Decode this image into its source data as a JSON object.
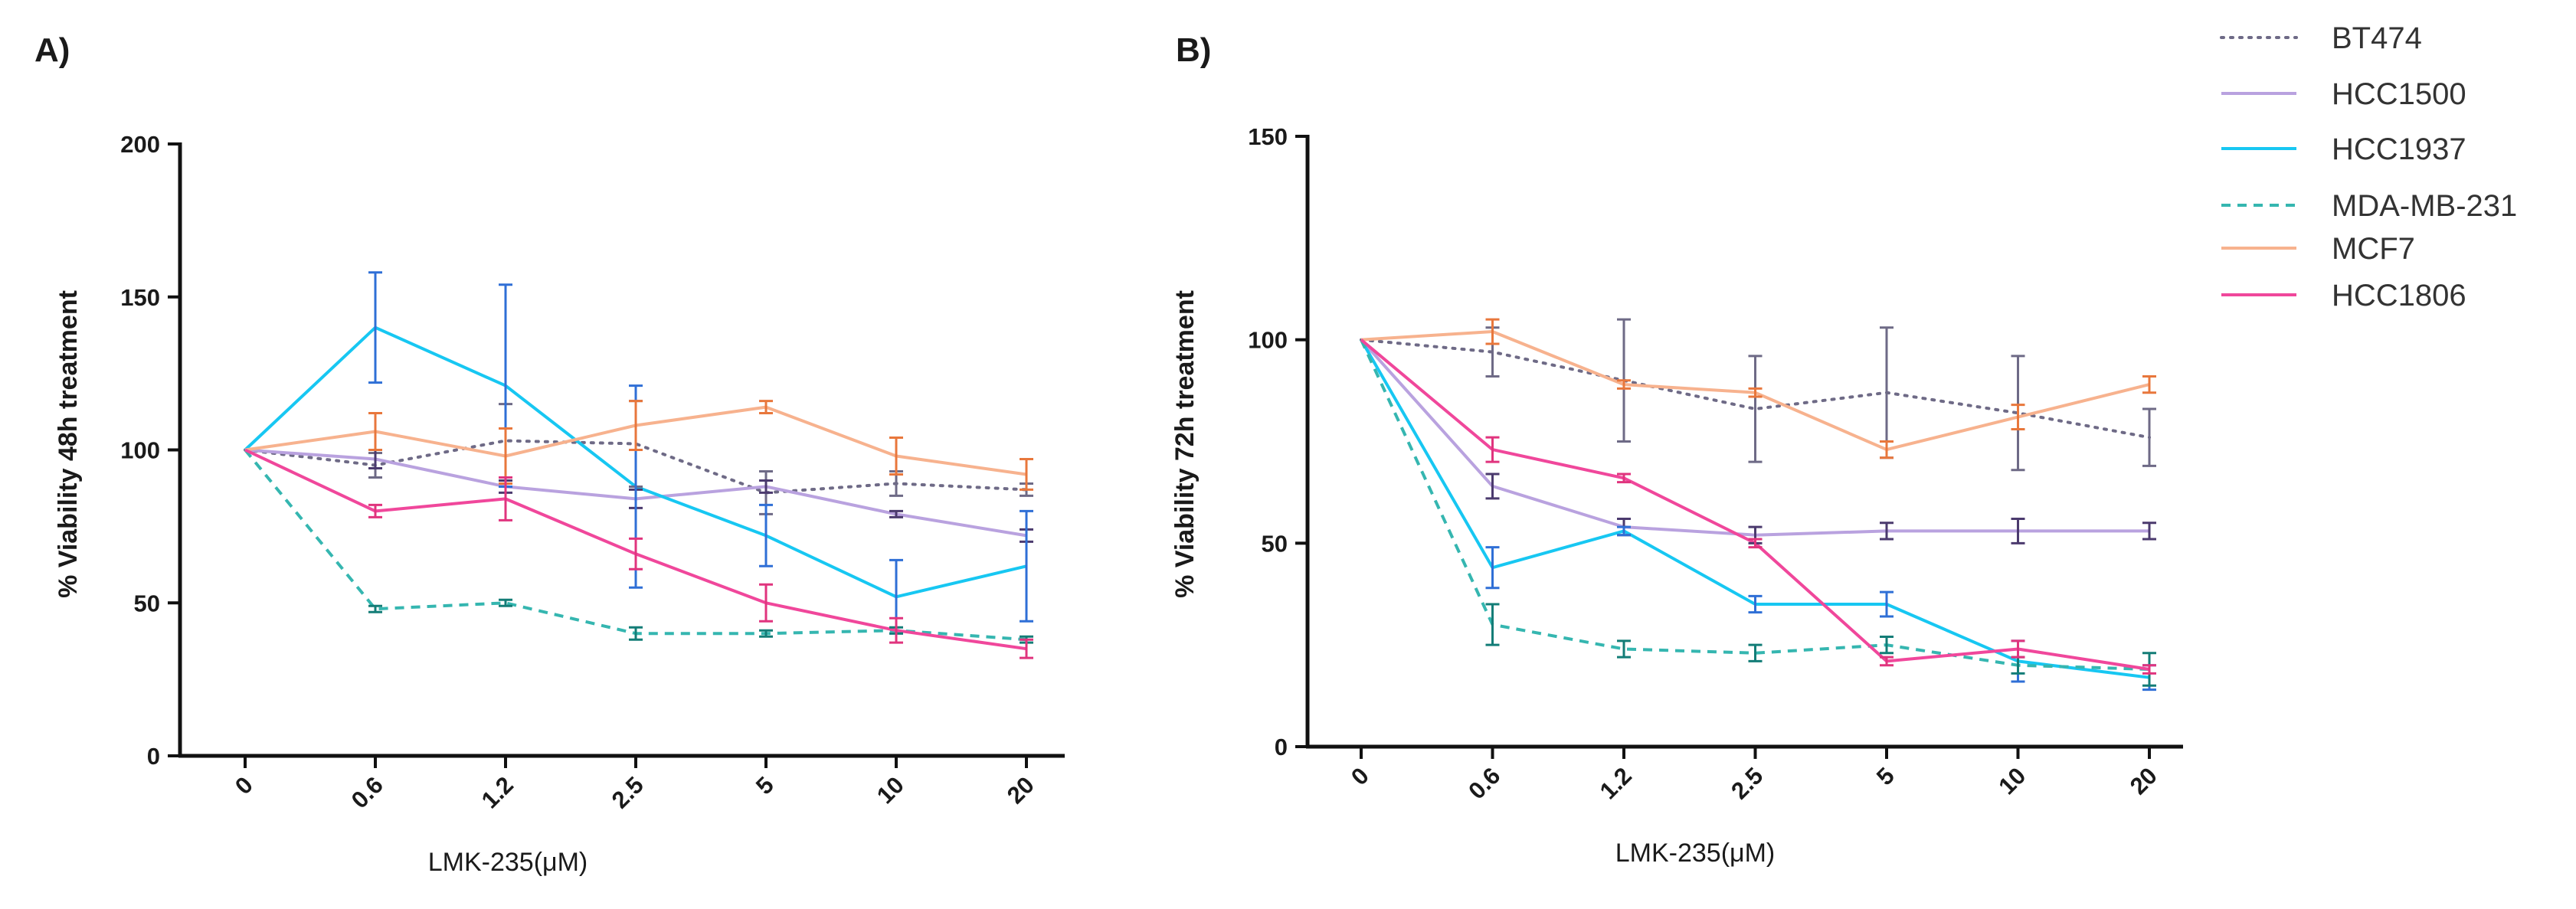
{
  "chart_data": [
    {
      "panel": "A)",
      "type": "line",
      "title": "",
      "xlabel": "LMK-235(μM)",
      "ylabel": "% Viability 48h treatment",
      "categories": [
        "0",
        "0.6",
        "1.2",
        "2.5",
        "5",
        "10",
        "20"
      ],
      "ylim": [
        0,
        200
      ],
      "yticks": [
        0,
        50,
        100,
        150,
        200
      ],
      "series": [
        {
          "name": "BT474",
          "values": [
            100,
            95,
            103,
            102,
            86,
            89,
            87
          ],
          "errors": [
            0,
            4,
            12,
            14,
            7,
            4,
            2
          ]
        },
        {
          "name": "HCC1500",
          "values": [
            100,
            97,
            88,
            84,
            88,
            79,
            72
          ],
          "errors": [
            0,
            3,
            2,
            3,
            2,
            1,
            2
          ]
        },
        {
          "name": "HCC1937",
          "values": [
            100,
            140,
            121,
            88,
            72,
            52,
            62
          ],
          "errors": [
            0,
            18,
            33,
            33,
            10,
            12,
            18
          ]
        },
        {
          "name": "MDA-MB-231",
          "values": [
            100,
            48,
            50,
            40,
            40,
            41,
            38
          ],
          "errors": [
            0,
            1,
            1,
            2,
            1,
            1,
            1
          ]
        },
        {
          "name": "MCF7",
          "values": [
            100,
            106,
            98,
            108,
            114,
            98,
            92
          ],
          "errors": [
            0,
            6,
            9,
            8,
            2,
            6,
            5
          ]
        },
        {
          "name": "HCC1806",
          "values": [
            100,
            80,
            84,
            66,
            50,
            41,
            35
          ],
          "errors": [
            0,
            2,
            7,
            5,
            6,
            4,
            3
          ]
        }
      ]
    },
    {
      "panel": "B)",
      "type": "line",
      "title": "",
      "xlabel": "LMK-235(μM)",
      "ylabel": "% Viability 72h treatment",
      "categories": [
        "0",
        "0.6",
        "1.2",
        "2.5",
        "5",
        "10",
        "20"
      ],
      "ylim": [
        0,
        150
      ],
      "yticks": [
        0,
        50,
        100,
        150
      ],
      "series": [
        {
          "name": "BT474",
          "values": [
            100,
            97,
            90,
            83,
            87,
            82,
            76
          ],
          "errors": [
            0,
            6,
            15,
            13,
            16,
            14,
            7
          ]
        },
        {
          "name": "HCC1500",
          "values": [
            100,
            64,
            54,
            52,
            53,
            53,
            53
          ],
          "errors": [
            0,
            3,
            2,
            2,
            2,
            3,
            2
          ]
        },
        {
          "name": "HCC1937",
          "values": [
            100,
            44,
            53,
            35,
            35,
            21,
            17
          ],
          "errors": [
            0,
            5,
            1,
            2,
            3,
            5,
            3
          ]
        },
        {
          "name": "MDA-MB-231",
          "values": [
            100,
            30,
            24,
            23,
            25,
            20,
            19
          ],
          "errors": [
            0,
            5,
            2,
            2,
            2,
            2,
            4
          ]
        },
        {
          "name": "MCF7",
          "values": [
            100,
            102,
            89,
            87,
            73,
            81,
            89
          ],
          "errors": [
            0,
            3,
            1,
            1,
            2,
            3,
            2
          ]
        },
        {
          "name": "HCC1806",
          "values": [
            100,
            73,
            66,
            50,
            21,
            24,
            19
          ],
          "errors": [
            0,
            3,
            1,
            1,
            1,
            2,
            1
          ]
        }
      ]
    }
  ],
  "legend": [
    {
      "name": "BT474",
      "color": "#6e6a86",
      "line": "#6e6a86",
      "errcolor": "#6e6a86",
      "dash": "dot"
    },
    {
      "name": "HCC1500",
      "color": "#b9a2df",
      "line": "#b9a2df",
      "errcolor": "#4b3a6e",
      "dash": "solid"
    },
    {
      "name": "HCC1937",
      "color": "#17c7f2",
      "line": "#17c7f2",
      "errcolor": "#2f6fd6",
      "dash": "solid"
    },
    {
      "name": "MDA-MB-231",
      "color": "#35b6b0",
      "line": "#35b6b0",
      "errcolor": "#137d77",
      "dash": "dash"
    },
    {
      "name": "MCF7",
      "color": "#f7b28e",
      "line": "#f7b28e",
      "errcolor": "#e8773c",
      "dash": "solid"
    },
    {
      "name": "HCC1806",
      "color": "#f0479b",
      "line": "#f0479b",
      "errcolor": "#e0347e",
      "dash": "solid"
    }
  ]
}
